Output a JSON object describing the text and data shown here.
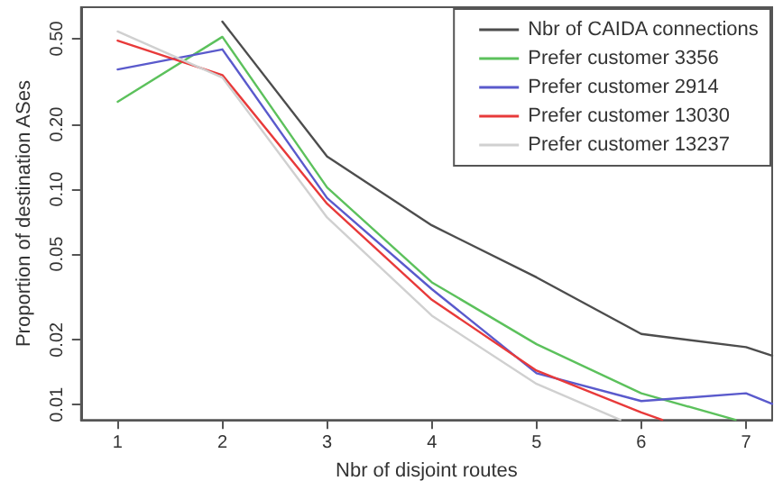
{
  "chart_data": {
    "type": "line",
    "xlabel": "Nbr of disjoint routes",
    "ylabel": "Proportion of destination ASes",
    "log": "y",
    "xlim": [
      0.65,
      7.25
    ],
    "xticks": [
      1,
      2,
      3,
      4,
      5,
      6,
      7
    ],
    "ylim": [
      0.0085,
      0.7
    ],
    "yticks": [
      {
        "value": 0.01,
        "label": "0.01"
      },
      {
        "value": 0.02,
        "label": "0.02"
      },
      {
        "value": 0.05,
        "label": "0.05"
      },
      {
        "value": 0.1,
        "label": "0.10"
      },
      {
        "value": 0.2,
        "label": "0.20"
      },
      {
        "value": 0.5,
        "label": "0.50"
      }
    ],
    "grid": false,
    "legend": "top right",
    "marker": "none",
    "line_style": "solid",
    "series": [
      {
        "name": "Nbr of CAIDA connections",
        "color": "#4d4d4d",
        "x": [
          2,
          3,
          4,
          5,
          6,
          7,
          7.25
        ],
        "values": [
          0.6,
          0.142,
          0.068,
          0.039,
          0.0213,
          0.0185,
          0.0169
        ]
      },
      {
        "name": "Prefer customer 3356",
        "color": "#5cc15c",
        "x": [
          1,
          2,
          3,
          4,
          5,
          6,
          6.9
        ],
        "values": [
          0.255,
          0.51,
          0.102,
          0.037,
          0.0191,
          0.0113,
          0.0085
        ]
      },
      {
        "name": "Prefer customer 2914",
        "color": "#5a5acc",
        "x": [
          1,
          2,
          3,
          4,
          5,
          6,
          7,
          7.25
        ],
        "values": [
          0.36,
          0.446,
          0.091,
          0.0344,
          0.014,
          0.0104,
          0.0113,
          0.0101
        ]
      },
      {
        "name": "Prefer customer 13030",
        "color": "#e83a3a",
        "x": [
          1,
          2,
          3,
          4,
          5,
          6,
          6.2
        ],
        "values": [
          0.49,
          0.339,
          0.0857,
          0.0307,
          0.0144,
          0.0092,
          0.0085
        ]
      },
      {
        "name": "Prefer customer 13237",
        "color": "#d0d0d0",
        "x": [
          1,
          2,
          3,
          4,
          5,
          5.8
        ],
        "values": [
          0.54,
          0.33,
          0.074,
          0.0259,
          0.0125,
          0.0085
        ]
      }
    ]
  }
}
